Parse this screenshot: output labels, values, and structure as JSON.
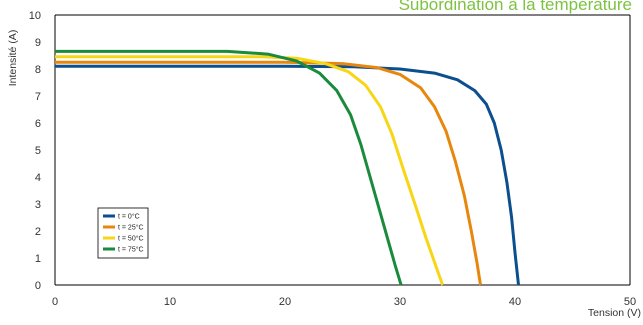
{
  "chart_data": {
    "type": "line",
    "title": "Subordination à la température",
    "xlabel": "Tension (V)",
    "ylabel": "Intensité (A)",
    "xlim": [
      0,
      50
    ],
    "ylim": [
      0,
      10
    ],
    "x_ticks": [
      "0",
      "10",
      "20",
      "30",
      "40",
      "50"
    ],
    "y_ticks": [
      "0",
      "1",
      "2",
      "3",
      "4",
      "5",
      "6",
      "7",
      "8",
      "9",
      "10"
    ],
    "grid": false,
    "legend_position": "lower-left",
    "series": [
      {
        "name": "t = 0°C",
        "color": "#0b4f8f",
        "points": [
          [
            0,
            8.1
          ],
          [
            20,
            8.1
          ],
          [
            26,
            8.08
          ],
          [
            30,
            8.0
          ],
          [
            33,
            7.85
          ],
          [
            35,
            7.6
          ],
          [
            36.5,
            7.2
          ],
          [
            37.5,
            6.7
          ],
          [
            38.2,
            6.0
          ],
          [
            38.8,
            5.0
          ],
          [
            39.3,
            3.8
          ],
          [
            39.7,
            2.5
          ],
          [
            40.0,
            1.2
          ],
          [
            40.3,
            0
          ]
        ]
      },
      {
        "name": "t = 25°C",
        "color": "#e8870e",
        "points": [
          [
            0,
            8.25
          ],
          [
            20,
            8.25
          ],
          [
            25,
            8.2
          ],
          [
            28,
            8.05
          ],
          [
            30,
            7.8
          ],
          [
            31.8,
            7.3
          ],
          [
            33,
            6.6
          ],
          [
            34,
            5.7
          ],
          [
            34.8,
            4.6
          ],
          [
            35.6,
            3.3
          ],
          [
            36.2,
            2.0
          ],
          [
            36.7,
            0.8
          ],
          [
            37.0,
            0
          ]
        ]
      },
      {
        "name": "t = 50°C",
        "color": "#f7d615",
        "points": [
          [
            0,
            8.45
          ],
          [
            18,
            8.45
          ],
          [
            21,
            8.4
          ],
          [
            23.5,
            8.2
          ],
          [
            25.5,
            7.9
          ],
          [
            27,
            7.4
          ],
          [
            28.3,
            6.6
          ],
          [
            29.3,
            5.6
          ],
          [
            30.2,
            4.4
          ],
          [
            31.3,
            3.0
          ],
          [
            32.3,
            1.7
          ],
          [
            33.2,
            0.6
          ],
          [
            33.7,
            0
          ]
        ]
      },
      {
        "name": "t = 75°C",
        "color": "#1a8a3c",
        "points": [
          [
            0,
            8.65
          ],
          [
            15,
            8.65
          ],
          [
            18.5,
            8.55
          ],
          [
            21,
            8.3
          ],
          [
            23,
            7.85
          ],
          [
            24.5,
            7.2
          ],
          [
            25.7,
            6.3
          ],
          [
            26.6,
            5.2
          ],
          [
            27.4,
            4.0
          ],
          [
            28.2,
            2.8
          ],
          [
            29,
            1.6
          ],
          [
            29.6,
            0.7
          ],
          [
            30.1,
            0
          ]
        ]
      }
    ]
  }
}
